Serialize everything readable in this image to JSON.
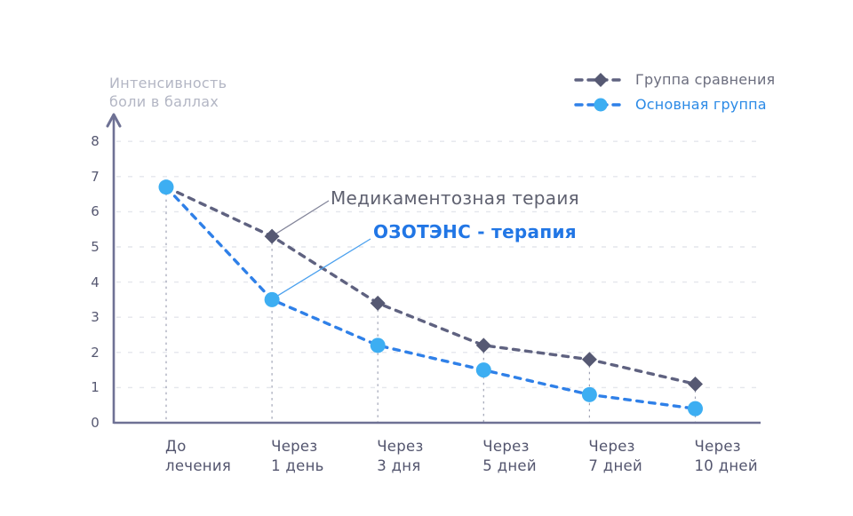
{
  "colors": {
    "background": "#ffffff",
    "axis": "#6e7194",
    "grid": "#e4e6ec",
    "drop_line": "#a0a4b6",
    "comparison_line": "#5f6280",
    "comparison_marker": "#565973",
    "main_line": "#2f80e8",
    "main_marker": "#3daef2",
    "tick_label": "#565871",
    "x_label": "#53556e",
    "y_title": "#b3b6c4",
    "annotation_gray": "#5f6170",
    "annotation_blue": "#2176e5",
    "legend_gray_text": "#6b6d7e",
    "legend_blue_text": "#2b8ae6",
    "leader_gray": "#83859a",
    "leader_blue": "#4aa0ee"
  },
  "y_axis_title": {
    "text": "Интенсивность\nболи в баллах"
  },
  "legend": [
    {
      "label": "Группа сравнения",
      "series": "comparison"
    },
    {
      "label": "Основная группа",
      "series": "main"
    }
  ],
  "annotations": [
    {
      "text": "Медикаментозная тераия",
      "target": "comparison"
    },
    {
      "text": "ОЗОТЭНС - терапия",
      "target": "main"
    }
  ],
  "chart_data": {
    "type": "line",
    "title": "",
    "xlabel": "",
    "ylabel": "Интенсивность боли в баллах",
    "categories": [
      "До\nлечения",
      "Через\n1 день",
      "Через\n3 дня",
      "Через\n5 дней",
      "Через\n7 дней",
      "Через\n10 дней"
    ],
    "yticks": [
      0,
      1,
      2,
      3,
      4,
      5,
      6,
      7,
      8
    ],
    "ylim": [
      0,
      8.5
    ],
    "grid": "horizontal-dashed",
    "legend_position": "top-right",
    "line_style": "dashed",
    "series": [
      {
        "name": "Группа сравнения",
        "marker": "diamond",
        "values": [
          6.7,
          5.3,
          3.4,
          2.2,
          1.8,
          1.1
        ]
      },
      {
        "name": "Основная группа",
        "marker": "circle",
        "values": [
          6.7,
          3.5,
          2.2,
          1.5,
          0.8,
          0.4
        ]
      }
    ]
  }
}
